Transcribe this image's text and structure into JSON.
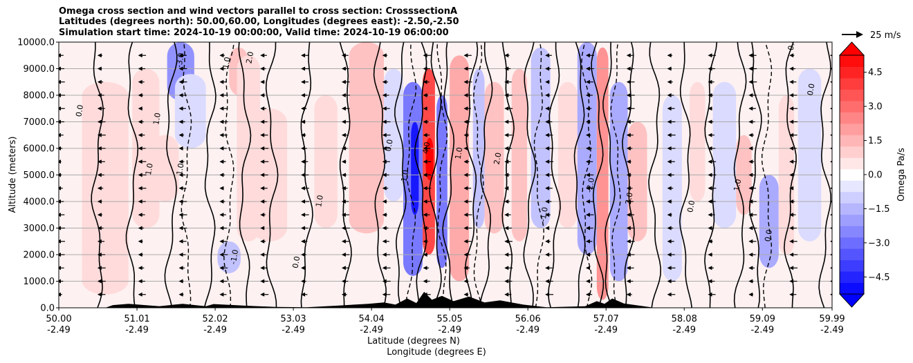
{
  "chart_data": {
    "type": "heatmap",
    "title_lines": [
      "Omega cross section and wind vectors parallel to cross section: CrosssectionA",
      "Latitudes (degrees north): 50.00,60.00, Longitudes (degrees east): -2.50,-2.50",
      "Simulation start time: 2024-10-19 00:00:00, Valid time: 2024-10-19 06:00:00"
    ],
    "xlabel_lines": [
      "Latitude (degrees N)",
      "Longitude (degrees E)"
    ],
    "ylabel": "Altitude (meters)",
    "x_ticks": [
      {
        "lat": 50.0,
        "label": "50.00",
        "lon_label": "-2.49"
      },
      {
        "lat": 51.01,
        "label": "51.01",
        "lon_label": "-2.49"
      },
      {
        "lat": 52.02,
        "label": "52.02",
        "lon_label": "-2.49"
      },
      {
        "lat": 53.03,
        "label": "53.03",
        "lon_label": "-2.49"
      },
      {
        "lat": 54.04,
        "label": "54.04",
        "lon_label": "-2.49"
      },
      {
        "lat": 55.05,
        "label": "55.05",
        "lon_label": "-2.49"
      },
      {
        "lat": 56.06,
        "label": "56.06",
        "lon_label": "-2.49"
      },
      {
        "lat": 57.07,
        "label": "57.07",
        "lon_label": "-2.49"
      },
      {
        "lat": 58.08,
        "label": "58.08",
        "lon_label": "-2.49"
      },
      {
        "lat": 59.09,
        "label": "59.09",
        "lon_label": "-2.49"
      },
      {
        "lat": 59.99,
        "label": "59.99",
        "lon_label": "-2.49"
      }
    ],
    "xlim": [
      50.0,
      59.99
    ],
    "y_ticks": [
      {
        "value": 0,
        "label": "0.0"
      },
      {
        "value": 1000,
        "label": "1000.0"
      },
      {
        "value": 2000,
        "label": "2000.0"
      },
      {
        "value": 3000,
        "label": "3000.0"
      },
      {
        "value": 4000,
        "label": "4000.0"
      },
      {
        "value": 5000,
        "label": "5000.0"
      },
      {
        "value": 6000,
        "label": "6000.0"
      },
      {
        "value": 7000,
        "label": "7000.0"
      },
      {
        "value": 8000,
        "label": "8000.0"
      },
      {
        "value": 9000,
        "label": "9000.0"
      },
      {
        "value": 10000,
        "label": "10000.0"
      }
    ],
    "ylim": [
      0,
      10000
    ],
    "grid": "horizontal",
    "colorbar": {
      "label": "Omega Pa/s",
      "range": [
        -5.25,
        5.25
      ],
      "step": 0.5,
      "extend": "both",
      "ticks": [
        {
          "value": 4.5,
          "label": "4.5"
        },
        {
          "value": 3.0,
          "label": "3.0"
        },
        {
          "value": 1.5,
          "label": "1.5"
        },
        {
          "value": 0.0,
          "label": "0.0"
        },
        {
          "value": -1.5,
          "label": "−1.5"
        },
        {
          "value": -3.0,
          "label": "−3.0"
        },
        {
          "value": -4.5,
          "label": "−4.5"
        }
      ],
      "low_color": "#0000ff",
      "high_color": "#ff0000"
    },
    "quiver_key": {
      "label": "25 m/s",
      "speed": 25
    },
    "omega_cells": [
      {
        "lat": [
          50.3,
          50.9
        ],
        "alt": [
          500,
          8500
        ],
        "value": 0.25
      },
      {
        "lat": [
          50.95,
          51.3
        ],
        "alt": [
          3000,
          9000
        ],
        "value": 0.3
      },
      {
        "lat": [
          51.4,
          51.75
        ],
        "alt": [
          7800,
          10000
        ],
        "value": -1.8
      },
      {
        "lat": [
          51.5,
          51.9
        ],
        "alt": [
          6000,
          8800
        ],
        "value": -0.7
      },
      {
        "lat": [
          51.2,
          51.55
        ],
        "alt": [
          4000,
          6500
        ],
        "value": 0.6
      },
      {
        "lat": [
          52.05,
          52.35
        ],
        "alt": [
          1300,
          2500
        ],
        "value": -1.2
      },
      {
        "lat": [
          52.2,
          52.45
        ],
        "alt": [
          8000,
          9800
        ],
        "value": 0.9
      },
      {
        "lat": [
          52.3,
          52.6
        ],
        "alt": [
          2500,
          9500
        ],
        "value": 0.4
      },
      {
        "lat": [
          52.5,
          52.95
        ],
        "alt": [
          2500,
          7500
        ],
        "value": 0.7
      },
      {
        "lat": [
          53.3,
          53.6
        ],
        "alt": [
          3000,
          8000
        ],
        "value": 0.35
      },
      {
        "lat": [
          53.75,
          54.2
        ],
        "alt": [
          2800,
          10000
        ],
        "value": 1.1
      },
      {
        "lat": [
          54.2,
          54.45
        ],
        "alt": [
          4000,
          9000
        ],
        "value": -0.5
      },
      {
        "lat": [
          54.45,
          54.7
        ],
        "alt": [
          1200,
          8500
        ],
        "value": -2.6
      },
      {
        "lat": [
          54.55,
          54.65
        ],
        "alt": [
          3500,
          7000
        ],
        "value": -4.6
      },
      {
        "lat": [
          54.7,
          54.86
        ],
        "alt": [
          2000,
          9000
        ],
        "value": 3.4
      },
      {
        "lat": [
          54.74,
          54.84
        ],
        "alt": [
          4800,
          6400
        ],
        "value": 4.9
      },
      {
        "lat": [
          54.88,
          55.02
        ],
        "alt": [
          1500,
          8000
        ],
        "value": -2.3
      },
      {
        "lat": [
          55.05,
          55.3
        ],
        "alt": [
          1000,
          9500
        ],
        "value": 1.3
      },
      {
        "lat": [
          55.35,
          55.5
        ],
        "alt": [
          3000,
          9000
        ],
        "value": -1.1
      },
      {
        "lat": [
          55.5,
          55.75
        ],
        "alt": [
          2800,
          8500
        ],
        "value": 1.2
      },
      {
        "lat": [
          55.85,
          56.05
        ],
        "alt": [
          2500,
          9000
        ],
        "value": 0.8
      },
      {
        "lat": [
          56.1,
          56.35
        ],
        "alt": [
          3000,
          9800
        ],
        "value": -1.0
      },
      {
        "lat": [
          56.45,
          56.7
        ],
        "alt": [
          3000,
          8500
        ],
        "value": 0.6
      },
      {
        "lat": [
          56.7,
          56.95
        ],
        "alt": [
          2000,
          10000
        ],
        "value": -1.5
      },
      {
        "lat": [
          56.95,
          57.1
        ],
        "alt": [
          300,
          9800
        ],
        "value": 2.2
      },
      {
        "lat": [
          57.12,
          57.35
        ],
        "alt": [
          1000,
          8500
        ],
        "value": -1.6
      },
      {
        "lat": [
          57.35,
          57.6
        ],
        "alt": [
          2500,
          7000
        ],
        "value": 1.1
      },
      {
        "lat": [
          57.8,
          58.05
        ],
        "alt": [
          1000,
          8000
        ],
        "value": -0.5
      },
      {
        "lat": [
          58.15,
          58.35
        ],
        "alt": [
          4000,
          8500
        ],
        "value": 0.6
      },
      {
        "lat": [
          58.45,
          58.75
        ],
        "alt": [
          3000,
          8500
        ],
        "value": -0.7
      },
      {
        "lat": [
          58.75,
          58.95
        ],
        "alt": [
          3500,
          6500
        ],
        "value": 0.9
      },
      {
        "lat": [
          59.05,
          59.3
        ],
        "alt": [
          1500,
          5000
        ],
        "value": -1.4
      },
      {
        "lat": [
          59.3,
          59.5
        ],
        "alt": [
          2000,
          8000
        ],
        "value": 0.4
      },
      {
        "lat": [
          59.55,
          59.85
        ],
        "alt": [
          2500,
          9000
        ],
        "value": -0.4
      }
    ],
    "zero_contours": [
      50.5,
      50.95,
      51.45,
      51.95,
      52.4,
      52.75,
      53.2,
      53.7,
      54.15,
      54.42,
      54.68,
      54.87,
      55.04,
      55.33,
      55.52,
      55.8,
      56.08,
      56.4,
      56.72,
      56.96,
      57.11,
      57.36,
      57.7,
      58.1,
      58.42,
      58.8,
      59.0,
      59.45,
      59.9
    ],
    "neg_contours": [
      51.65,
      52.2,
      54.55,
      54.95,
      55.42,
      56.2,
      56.82,
      57.2,
      59.15
    ],
    "contour_labels": [
      {
        "lat": 50.3,
        "alt": 7400,
        "text": "0.0"
      },
      {
        "lat": 51.3,
        "alt": 7100,
        "text": "1.0"
      },
      {
        "lat": 51.2,
        "alt": 5200,
        "text": "1.0"
      },
      {
        "lat": 51.6,
        "alt": 9300,
        "text": "-3.0"
      },
      {
        "lat": 51.6,
        "alt": 5200,
        "text": "1.0"
      },
      {
        "lat": 52.2,
        "alt": 9200,
        "text": "1.0"
      },
      {
        "lat": 52.3,
        "alt": 1900,
        "text": "-1.0"
      },
      {
        "lat": 52.5,
        "alt": 9400,
        "text": "2.0"
      },
      {
        "lat": 53.1,
        "alt": 1700,
        "text": "0.0"
      },
      {
        "lat": 53.4,
        "alt": 4000,
        "text": "1.0"
      },
      {
        "lat": 54.3,
        "alt": 6100,
        "text": "0.0"
      },
      {
        "lat": 54.5,
        "alt": 4900,
        "text": "-1.0"
      },
      {
        "lat": 54.78,
        "alt": 6000,
        "text": "4.0"
      },
      {
        "lat": 55.2,
        "alt": 5800,
        "text": "1.0"
      },
      {
        "lat": 55.7,
        "alt": 5600,
        "text": "2.0"
      },
      {
        "lat": 56.3,
        "alt": 3500,
        "text": "-1.0"
      },
      {
        "lat": 56.9,
        "alt": 4600,
        "text": "-2.0"
      },
      {
        "lat": 57.4,
        "alt": 4100,
        "text": "2.0"
      },
      {
        "lat": 58.2,
        "alt": 3800,
        "text": "0.0"
      },
      {
        "lat": 58.8,
        "alt": 4600,
        "text": "1.0"
      },
      {
        "lat": 59.2,
        "alt": 2700,
        "text": "0.0"
      },
      {
        "lat": 59.5,
        "alt": 9900,
        "text": "0.0"
      },
      {
        "lat": 59.75,
        "alt": 8200,
        "text": "0.0"
      }
    ],
    "terrain": [
      {
        "lat": 50.6,
        "alt": 0
      },
      {
        "lat": 50.7,
        "alt": 100
      },
      {
        "lat": 50.9,
        "alt": 150
      },
      {
        "lat": 51.3,
        "alt": 60
      },
      {
        "lat": 51.6,
        "alt": 150
      },
      {
        "lat": 51.9,
        "alt": 60
      },
      {
        "lat": 52.0,
        "alt": 140
      },
      {
        "lat": 52.4,
        "alt": 80
      },
      {
        "lat": 52.8,
        "alt": 30
      },
      {
        "lat": 53.2,
        "alt": 20
      },
      {
        "lat": 53.6,
        "alt": 80
      },
      {
        "lat": 54.0,
        "alt": 150
      },
      {
        "lat": 54.2,
        "alt": 200
      },
      {
        "lat": 54.35,
        "alt": 120
      },
      {
        "lat": 54.5,
        "alt": 350
      },
      {
        "lat": 54.62,
        "alt": 180
      },
      {
        "lat": 54.72,
        "alt": 600
      },
      {
        "lat": 54.82,
        "alt": 300
      },
      {
        "lat": 54.95,
        "alt": 450
      },
      {
        "lat": 55.1,
        "alt": 250
      },
      {
        "lat": 55.3,
        "alt": 420
      },
      {
        "lat": 55.5,
        "alt": 200
      },
      {
        "lat": 55.7,
        "alt": 280
      },
      {
        "lat": 56.0,
        "alt": 120
      },
      {
        "lat": 56.3,
        "alt": 20
      },
      {
        "lat": 56.8,
        "alt": 60
      },
      {
        "lat": 56.95,
        "alt": 250
      },
      {
        "lat": 57.05,
        "alt": 150
      },
      {
        "lat": 57.15,
        "alt": 350
      },
      {
        "lat": 57.3,
        "alt": 160
      },
      {
        "lat": 57.5,
        "alt": 80
      },
      {
        "lat": 57.7,
        "alt": 0
      }
    ]
  }
}
